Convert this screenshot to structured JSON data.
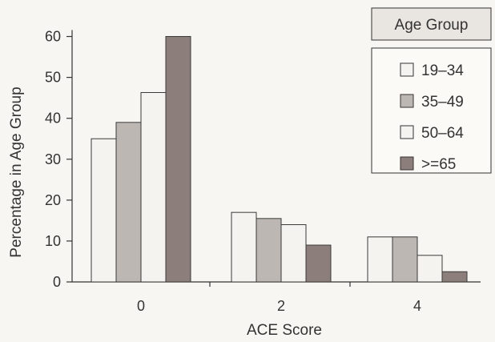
{
  "chart_data": {
    "type": "bar",
    "xlabel": "ACE Score",
    "ylabel": "Percentage in Age Group",
    "ylim": [
      0,
      65
    ],
    "yticks": [
      0,
      10,
      20,
      30,
      40,
      50,
      60
    ],
    "categories": [
      "0",
      "2",
      "4"
    ],
    "grid": false,
    "legend": {
      "title": "Age Group",
      "placement": "top-right"
    },
    "series": [
      {
        "name": "19–34",
        "color": "#f4f3ef",
        "values": [
          35,
          17,
          11
        ]
      },
      {
        "name": "35–49",
        "color": "#bdb7b3",
        "values": [
          39,
          15.5,
          11
        ]
      },
      {
        "name": "50–64",
        "color": "#f4f3ef",
        "values": [
          46.3,
          14,
          6.5
        ]
      },
      {
        "name": ">=65",
        "color": "#8c7f7b",
        "values": [
          60,
          9,
          2.5
        ]
      }
    ]
  }
}
